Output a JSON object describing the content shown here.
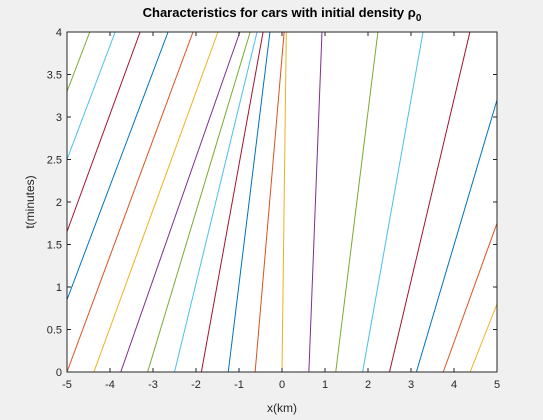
{
  "chart_data": {
    "type": "line",
    "title": "Characteristics for cars with initial density ρ",
    "title_subscript": "0",
    "xlabel": "x(km)",
    "ylabel": "t(minutes)",
    "xlim": [
      -5,
      5
    ],
    "ylim": [
      0,
      4
    ],
    "xticks": [
      -5,
      -4,
      -3,
      -2,
      -1,
      0,
      1,
      2,
      3,
      4,
      5
    ],
    "yticks": [
      0,
      0.5,
      1,
      1.5,
      2,
      2.5,
      3,
      3.5,
      4
    ],
    "series": [
      {
        "color": "#77ac30",
        "x": [
          -5,
          -4.47
        ],
        "values": [
          3.3,
          4
        ]
      },
      {
        "color": "#4dbeee",
        "x": [
          -5,
          -3.88
        ],
        "values": [
          2.5,
          4
        ]
      },
      {
        "color": "#a2142f",
        "x": [
          -5,
          -3.3
        ],
        "values": [
          1.65,
          4
        ]
      },
      {
        "color": "#0072bd",
        "x": [
          -5,
          -2.65
        ],
        "values": [
          0.85,
          4
        ]
      },
      {
        "color": "#d95319",
        "x": [
          -5,
          -2.07
        ],
        "values": [
          0,
          4
        ]
      },
      {
        "color": "#edb120",
        "x": [
          -4.375,
          -1.49
        ],
        "values": [
          0,
          4
        ]
      },
      {
        "color": "#7e2f8e",
        "x": [
          -3.75,
          -0.98
        ],
        "values": [
          0,
          4
        ]
      },
      {
        "color": "#77ac30",
        "x": [
          -3.125,
          -0.74
        ],
        "values": [
          0,
          4
        ]
      },
      {
        "color": "#4dbeee",
        "x": [
          -2.5,
          -0.58
        ],
        "values": [
          0,
          4
        ]
      },
      {
        "color": "#a2142f",
        "x": [
          -1.875,
          -0.44
        ],
        "values": [
          0,
          4
        ]
      },
      {
        "color": "#0072bd",
        "x": [
          -1.25,
          -0.28
        ],
        "values": [
          0,
          4
        ]
      },
      {
        "color": "#d95319",
        "x": [
          -0.625,
          0.05
        ],
        "values": [
          0,
          4
        ]
      },
      {
        "color": "#edb120",
        "x": [
          0,
          0.1
        ],
        "values": [
          0,
          4
        ]
      },
      {
        "color": "#7e2f8e",
        "x": [
          0.625,
          0.93
        ],
        "values": [
          0,
          4
        ]
      },
      {
        "color": "#77ac30",
        "x": [
          1.25,
          2.23
        ],
        "values": [
          0,
          4
        ]
      },
      {
        "color": "#4dbeee",
        "x": [
          1.875,
          3.28
        ],
        "values": [
          0,
          4
        ]
      },
      {
        "color": "#a2142f",
        "x": [
          2.5,
          4.37
        ],
        "values": [
          0,
          4
        ]
      },
      {
        "color": "#0072bd",
        "x": [
          3.125,
          5
        ],
        "values": [
          0,
          3.2
        ]
      },
      {
        "color": "#d95319",
        "x": [
          3.75,
          5
        ],
        "values": [
          0,
          1.75
        ]
      },
      {
        "color": "#edb120",
        "x": [
          4.375,
          5
        ],
        "values": [
          0,
          0.8
        ]
      }
    ]
  }
}
